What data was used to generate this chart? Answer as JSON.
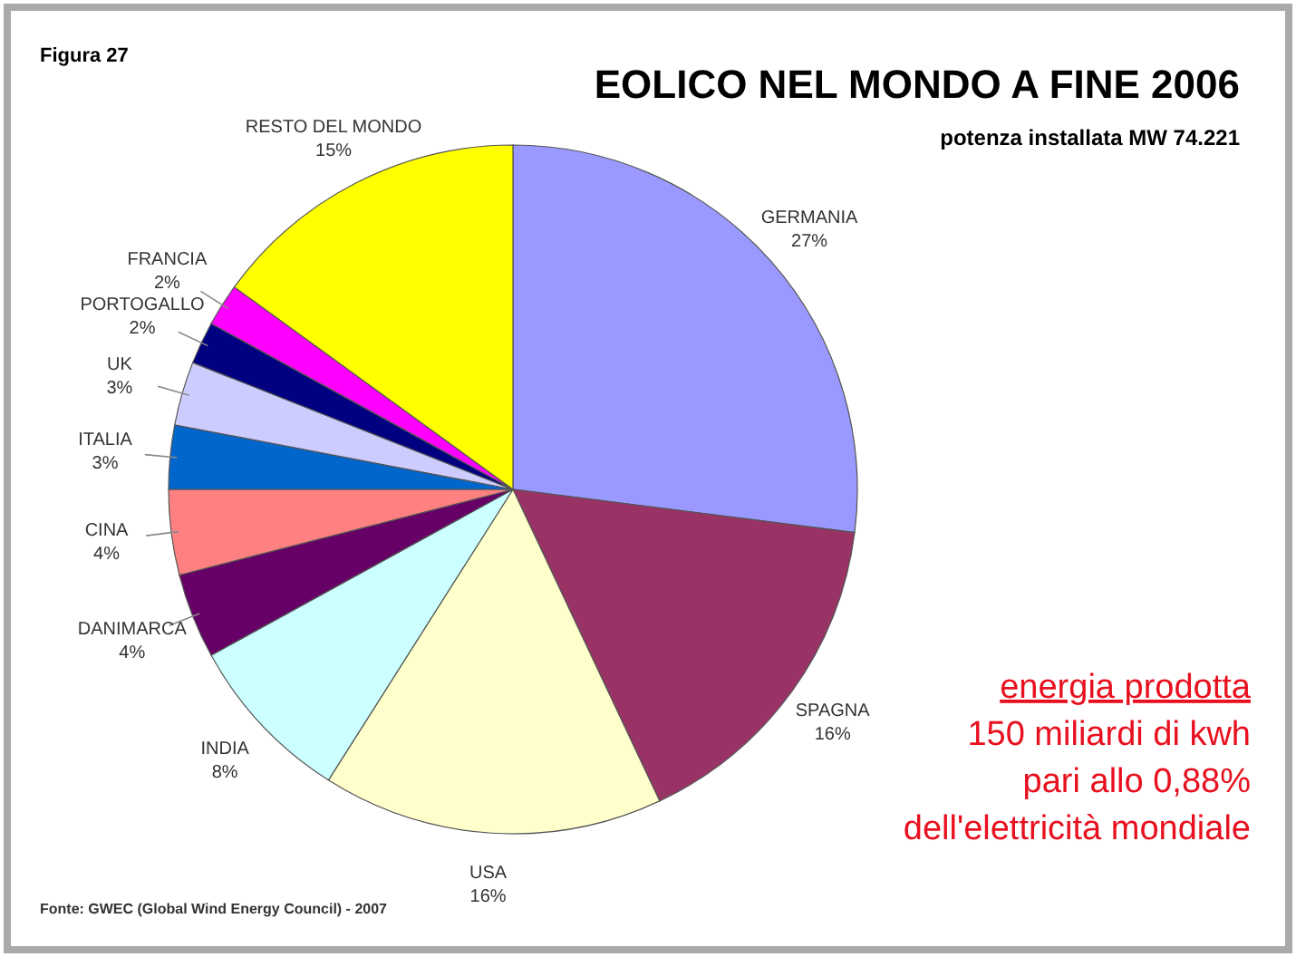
{
  "chart_data": {
    "type": "pie",
    "title": "EOLICO NEL MONDO A FINE 2006",
    "subtitle": "potenza installata MW 74.221",
    "categories": [
      "GERMANIA",
      "SPAGNA",
      "USA",
      "INDIA",
      "DANIMARCA",
      "CINA",
      "ITALIA",
      "UK",
      "PORTOGALLO",
      "FRANCIA",
      "RESTO DEL MONDO"
    ],
    "values": [
      27,
      16,
      16,
      8,
      4,
      4,
      3,
      3,
      2,
      2,
      15
    ],
    "colors": [
      "#9999ff",
      "#993366",
      "#ffffcc",
      "#ccffff",
      "#660066",
      "#ff8080",
      "#0066cc",
      "#ccccff",
      "#000080",
      "#ff00ff",
      "#ffff00"
    ],
    "value_labels": [
      "27%",
      "16%",
      "16%",
      "8%",
      "4%",
      "4%",
      "3%",
      "3%",
      "2%",
      "2%",
      "15%"
    ],
    "annotations": [
      "Figura 27",
      "energia prodotta",
      "150 miliardi di kwh",
      "pari allo 0,88%",
      "dell'elettricità mondiale",
      "Fonte: GWEC (Global Wind Energy Council) - 2007"
    ]
  }
}
